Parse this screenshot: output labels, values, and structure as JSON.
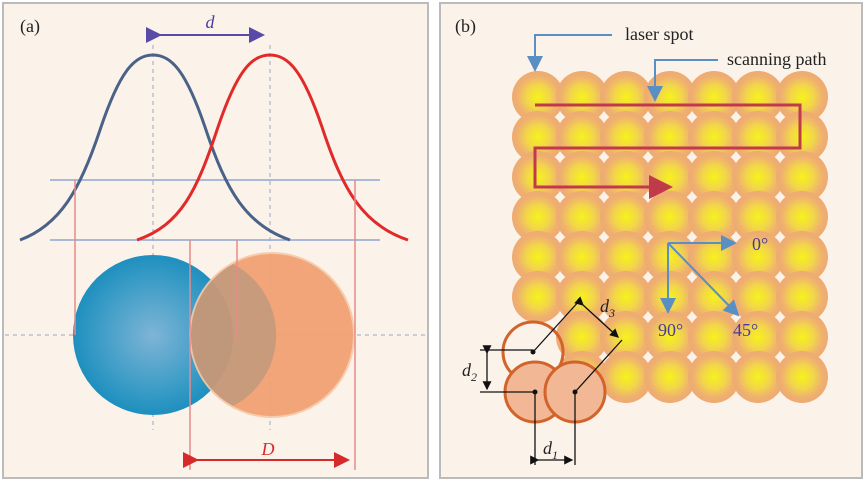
{
  "panel_a": {
    "label": "(a)",
    "peak_distance": "d",
    "overlap_width": "D"
  },
  "panel_b": {
    "label": "(b)",
    "laser_spot": "laser spot",
    "scanning_path": "scanning path",
    "angles": [
      "0°",
      "90°",
      "45°"
    ],
    "spacings": [
      {
        "base": "d",
        "sub": "3"
      },
      {
        "base": "d",
        "sub": "2"
      },
      {
        "base": "d",
        "sub": "1"
      }
    ]
  }
}
